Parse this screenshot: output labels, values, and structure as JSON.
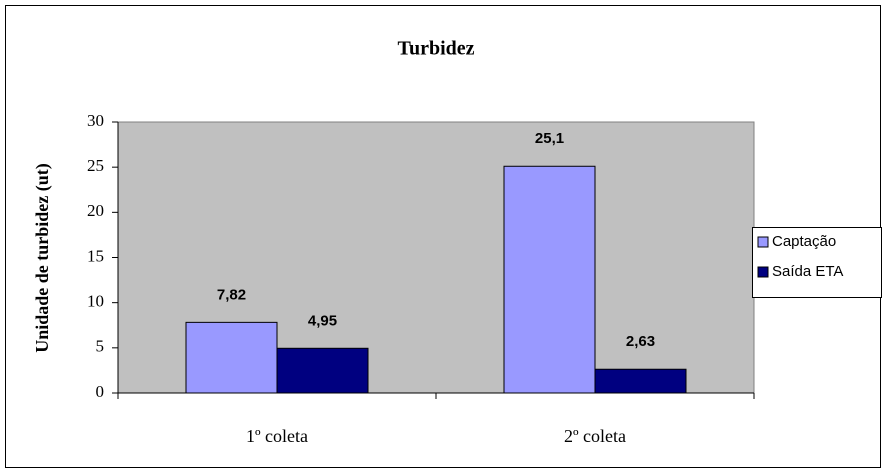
{
  "chart_data": {
    "type": "bar",
    "title": "Turbidez",
    "y_label": "Unidade de turbidez (ut)",
    "categories": [
      "1º coleta",
      "2º coleta"
    ],
    "series": [
      {
        "name": "Captação",
        "color": "#9999ff",
        "values": [
          7.82,
          25.1
        ],
        "value_labels": [
          "7,82",
          "25,1"
        ]
      },
      {
        "name": "Saída ETA",
        "color": "#000080",
        "values": [
          4.95,
          2.63
        ],
        "value_labels": [
          "4,95",
          "2,63"
        ]
      }
    ],
    "ylim": [
      0,
      30
    ],
    "yticks": [
      0,
      5,
      10,
      15,
      20,
      25,
      30
    ],
    "legend": "right",
    "plot_background": "#c0c0c0"
  }
}
